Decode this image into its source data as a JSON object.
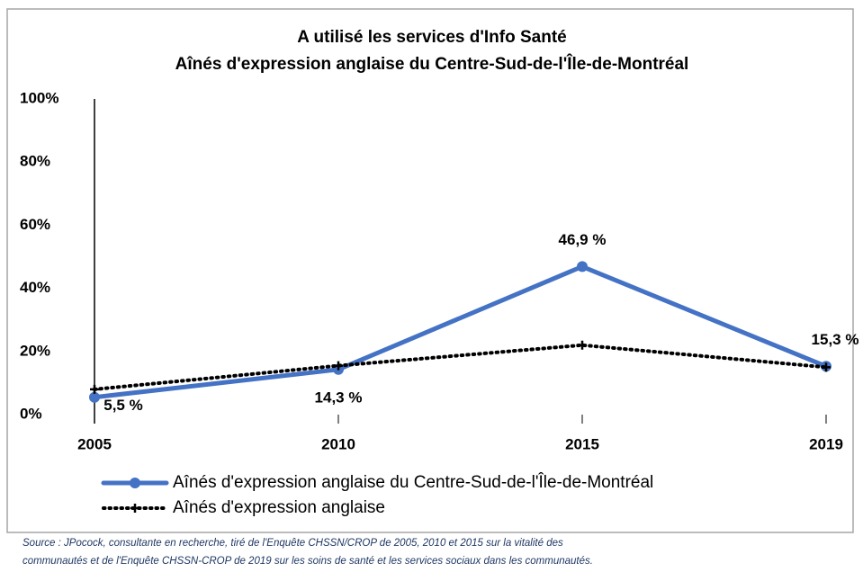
{
  "chart_data": {
    "type": "line",
    "title": [
      "A utilisé les services d'Info Santé",
      "Aînés d'expression anglaise du Centre-Sud-de-l'Île-de-Montréal"
    ],
    "categories": [
      "2005",
      "2010",
      "2015",
      "2019"
    ],
    "series": [
      {
        "name": "Aînés d'expression anglaise du Centre-Sud-de-l'Île-de-Montréal",
        "color": "#4472c4",
        "style": "solid",
        "values": [
          5.5,
          14.3,
          46.9,
          15.3
        ],
        "value_labels": [
          "5,5 %",
          "14,3 %",
          "46,9 %",
          "15,3 %"
        ]
      },
      {
        "name": "Aînés d'expression anglaise",
        "color": "#000000",
        "style": "dotted",
        "values": [
          8,
          15.5,
          22,
          15
        ]
      }
    ],
    "ylim": [
      0,
      100
    ],
    "yticks": [
      {
        "value": 0,
        "label": "0%"
      },
      {
        "value": 20,
        "label": "20%"
      },
      {
        "value": 40,
        "label": "40%"
      },
      {
        "value": 60,
        "label": "60%"
      },
      {
        "value": 80,
        "label": "80%"
      },
      {
        "value": 100,
        "label": "100%"
      }
    ],
    "grid": false,
    "source": [
      "Source : JPocock, consultante en recherche, tiré de l'Enquête CHSSN/CROP de 2005, 2010 et 2015 sur la vitalité des",
      "communautés et de l'Enquête CHSSN-CROP de 2019 sur les soins de santé et les services sociaux dans les communautés."
    ]
  }
}
